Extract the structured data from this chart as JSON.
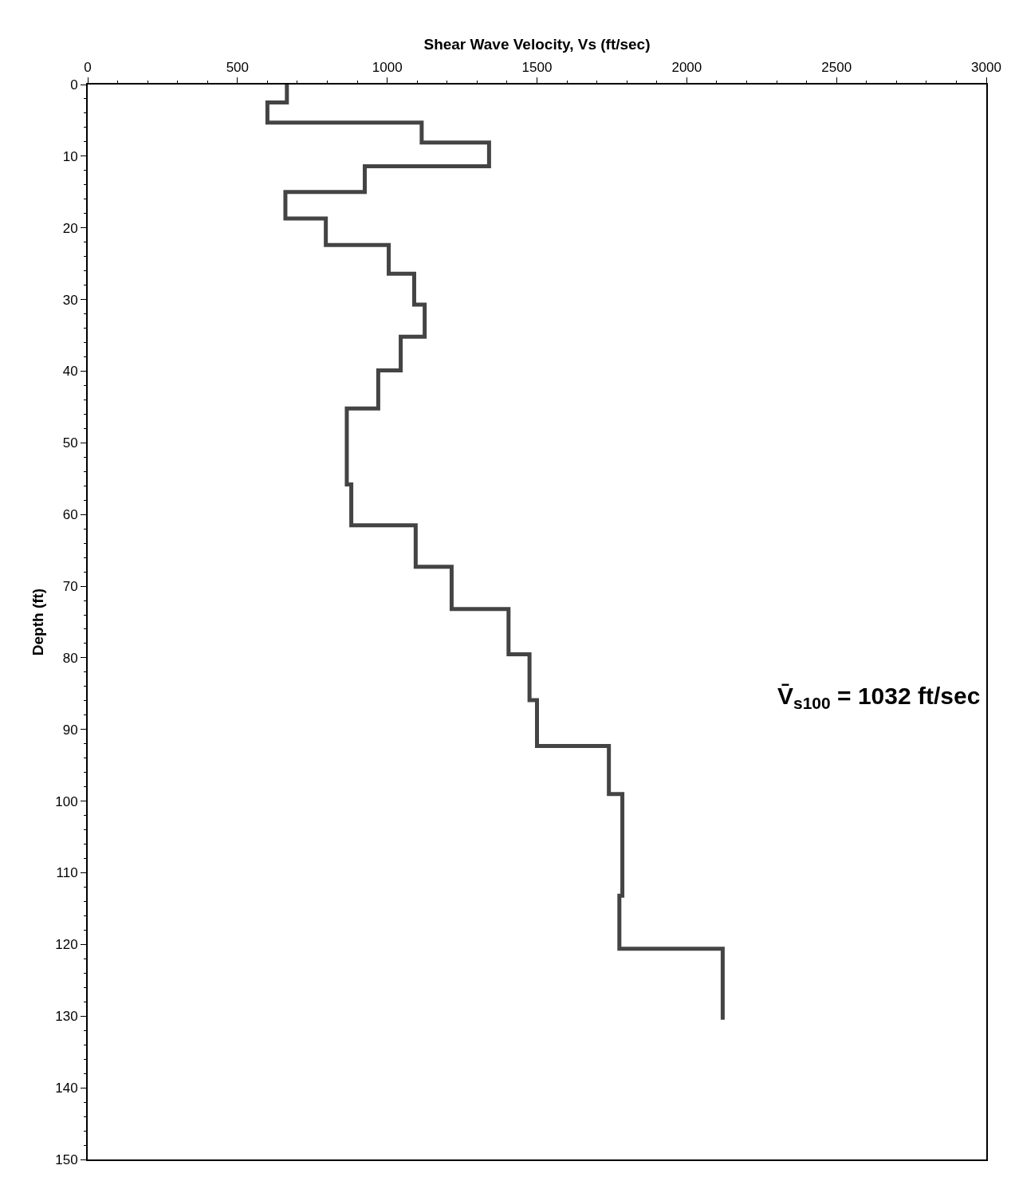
{
  "chart_data": {
    "type": "line",
    "xlabel": "Shear Wave Velocity, Vs (ft/sec)",
    "ylabel": "Depth (ft)",
    "series": [
      {
        "color": "#444444",
        "x": [
          665,
          665,
          600,
          600,
          1115,
          1115,
          1340,
          1340,
          925,
          925,
          660,
          660,
          795,
          795,
          1005,
          1005,
          1090,
          1090,
          1125,
          1125,
          1045,
          1045,
          970,
          970,
          865,
          865,
          880,
          880,
          1095,
          1095,
          1215,
          1215,
          1405,
          1405,
          1475,
          1475,
          1500,
          1500,
          1740,
          1740,
          1785,
          1785,
          1775,
          1775,
          2120,
          2120
        ],
        "values": [
          0,
          2.5,
          2.5,
          5.3,
          5.3,
          8.1,
          8.1,
          11.4,
          11.4,
          15,
          15,
          18.7,
          18.7,
          22.4,
          22.4,
          26.4,
          26.4,
          30.7,
          30.7,
          35.2,
          35.2,
          39.9,
          39.9,
          45.2,
          45.2,
          55.8,
          55.8,
          61.5,
          61.5,
          67.3,
          67.3,
          73.2,
          73.2,
          79.5,
          79.5,
          85.9,
          85.9,
          92.3,
          92.3,
          99,
          99,
          113.2,
          113.2,
          120.6,
          120.6,
          130.5
        ]
      }
    ],
    "xlim": [
      0,
      3000
    ],
    "xticks": [
      0,
      500,
      1000,
      1500,
      2000,
      2500,
      3000
    ],
    "ylim": [
      150,
      0
    ],
    "yticks": [
      0,
      10,
      20,
      30,
      40,
      50,
      60,
      70,
      80,
      90,
      100,
      110,
      120,
      130,
      140,
      150
    ],
    "annotations": [
      "V̄$_{s100}$ = 1032 ft/sec"
    ],
    "marker": "none",
    "line_style": "solid"
  }
}
